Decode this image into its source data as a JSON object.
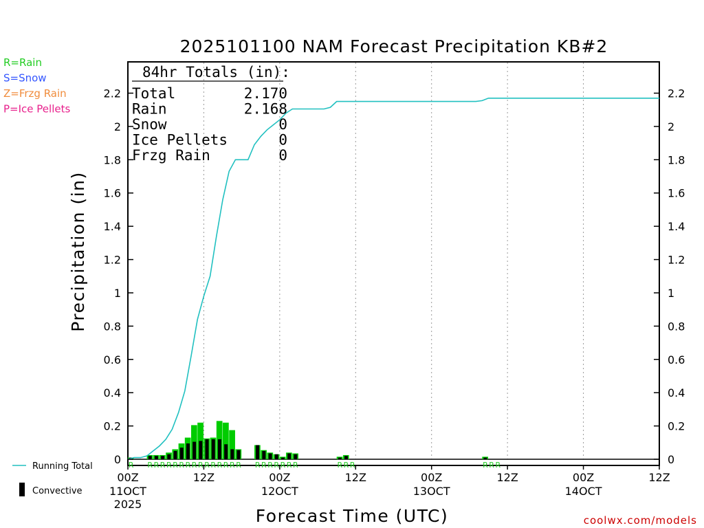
{
  "chart_data": {
    "type": "bar+line",
    "title": "2025101100 NAM Forecast Precipitation KB#2",
    "xlabel": "Forecast Time (UTC)",
    "ylabel": "Precipitation (in)",
    "ylim": [
      0,
      2.4
    ],
    "yticks": [
      0,
      0.2,
      0.4,
      0.6,
      0.8,
      1,
      1.2,
      1.4,
      1.6,
      1.8,
      2,
      2.2
    ],
    "ytick_labels": [
      "0",
      "0.2",
      "0.4",
      "0.6",
      "0.8",
      "1",
      "1.2",
      "1.4",
      "1.6",
      "1.8",
      "2",
      "2.2"
    ],
    "xlim_hours": [
      0,
      84
    ],
    "xticks": [
      {
        "hour": 0,
        "label": "00Z",
        "sub": "11OCT",
        "sub2": "2025"
      },
      {
        "hour": 12,
        "label": "12Z",
        "sub": "",
        "sub2": ""
      },
      {
        "hour": 24,
        "label": "00Z",
        "sub": "12OCT",
        "sub2": ""
      },
      {
        "hour": 36,
        "label": "12Z",
        "sub": "",
        "sub2": ""
      },
      {
        "hour": 48,
        "label": "00Z",
        "sub": "13OCT",
        "sub2": ""
      },
      {
        "hour": 60,
        "label": "12Z",
        "sub": "",
        "sub2": ""
      },
      {
        "hour": 72,
        "label": "00Z",
        "sub": "14OCT",
        "sub2": ""
      },
      {
        "hour": 84,
        "label": "12Z",
        "sub": "",
        "sub2": ""
      }
    ],
    "totals": {
      "heading": "84hr Totals (in):",
      "rows": [
        {
          "label": "Total",
          "value": "2.170"
        },
        {
          "label": "Rain",
          "value": "2.168"
        },
        {
          "label": "Snow",
          "value": "0"
        },
        {
          "label": "Ice Pellets",
          "value": "0"
        },
        {
          "label": "Frzg Rain",
          "value": "0"
        }
      ]
    },
    "type_legend": [
      {
        "text": "R=Rain",
        "color": "#22cc22"
      },
      {
        "text": "S=Snow",
        "color": "#3355ff"
      },
      {
        "text": "Z=Frzg Rain",
        "color": "#f08c3c"
      },
      {
        "text": "P=Ice Pellets",
        "color": "#e8208c"
      }
    ],
    "legend": {
      "running_total": "Running Total",
      "convective": "Convective"
    },
    "credit": "coolwx.com/models",
    "series": {
      "precip_hourly": {
        "color": "#00cc00",
        "hours": [
          1,
          2,
          3,
          4,
          5,
          6,
          7,
          8,
          9,
          10,
          11,
          12,
          13,
          14,
          15,
          16,
          17,
          18,
          19,
          20,
          21,
          22,
          23,
          24,
          25,
          26,
          27,
          28,
          34,
          35,
          36,
          57,
          58
        ],
        "values": [
          0.01,
          0.0,
          0.0,
          0.025,
          0.025,
          0.025,
          0.04,
          0.06,
          0.095,
          0.13,
          0.205,
          0.22,
          0.125,
          0.13,
          0.23,
          0.22,
          0.175,
          0.06,
          0.0,
          0.0,
          0.085,
          0.055,
          0.04,
          0.03,
          0.015,
          0.04,
          0.035,
          0.0,
          0.015,
          0.025,
          0.0,
          0.015,
          0.0
        ]
      },
      "convective_hourly": {
        "color": "#000000",
        "hours": [
          1,
          4,
          5,
          6,
          7,
          8,
          9,
          10,
          11,
          12,
          13,
          14,
          15,
          16,
          17,
          18,
          21,
          22,
          23,
          24,
          25,
          26,
          27,
          34,
          35,
          57
        ],
        "values": [
          0.01,
          0.02,
          0.02,
          0.02,
          0.03,
          0.05,
          0.07,
          0.095,
          0.105,
          0.11,
          0.12,
          0.12,
          0.12,
          0.09,
          0.06,
          0.055,
          0.085,
          0.05,
          0.035,
          0.03,
          0.01,
          0.035,
          0.03,
          0.01,
          0.02,
          0.01
        ]
      },
      "running_total": {
        "name": "Running Total",
        "color": "#20c0c0",
        "hours": [
          0,
          1,
          2,
          3,
          4,
          5,
          6,
          7,
          8,
          9,
          10,
          11,
          12,
          13,
          14,
          15,
          16,
          17,
          18,
          19,
          20,
          21,
          22,
          23,
          24,
          25,
          26,
          27,
          28,
          29,
          30,
          31,
          32,
          33,
          34,
          35,
          36,
          37,
          38,
          39,
          40,
          41,
          42,
          43,
          44,
          45,
          46,
          47,
          48,
          49,
          50,
          51,
          52,
          53,
          54,
          55,
          56,
          57,
          58,
          59,
          60,
          70,
          84
        ],
        "values": [
          0.0,
          0.01,
          0.01,
          0.02,
          0.05,
          0.08,
          0.12,
          0.18,
          0.28,
          0.41,
          0.62,
          0.84,
          0.98,
          1.1,
          1.34,
          1.56,
          1.73,
          1.8,
          1.8,
          1.8,
          1.89,
          1.94,
          1.98,
          2.01,
          2.04,
          2.08,
          2.105,
          2.105,
          2.105,
          2.105,
          2.105,
          2.105,
          2.115,
          2.15,
          2.15,
          2.15,
          2.15,
          2.15,
          2.15,
          2.15,
          2.15,
          2.15,
          2.15,
          2.15,
          2.15,
          2.15,
          2.15,
          2.15,
          2.15,
          2.15,
          2.15,
          2.15,
          2.15,
          2.15,
          2.15,
          2.15,
          2.155,
          2.17,
          2.17,
          2.17,
          2.17,
          2.17,
          2.17
        ]
      },
      "type_markers": {
        "letter": "R",
        "color": "#22cc22",
        "hours": [
          1,
          4,
          5,
          6,
          7,
          8,
          9,
          10,
          11,
          12,
          13,
          14,
          15,
          16,
          17,
          18,
          21,
          22,
          23,
          24,
          25,
          26,
          27,
          34,
          35,
          36,
          57,
          58,
          59
        ]
      }
    }
  }
}
